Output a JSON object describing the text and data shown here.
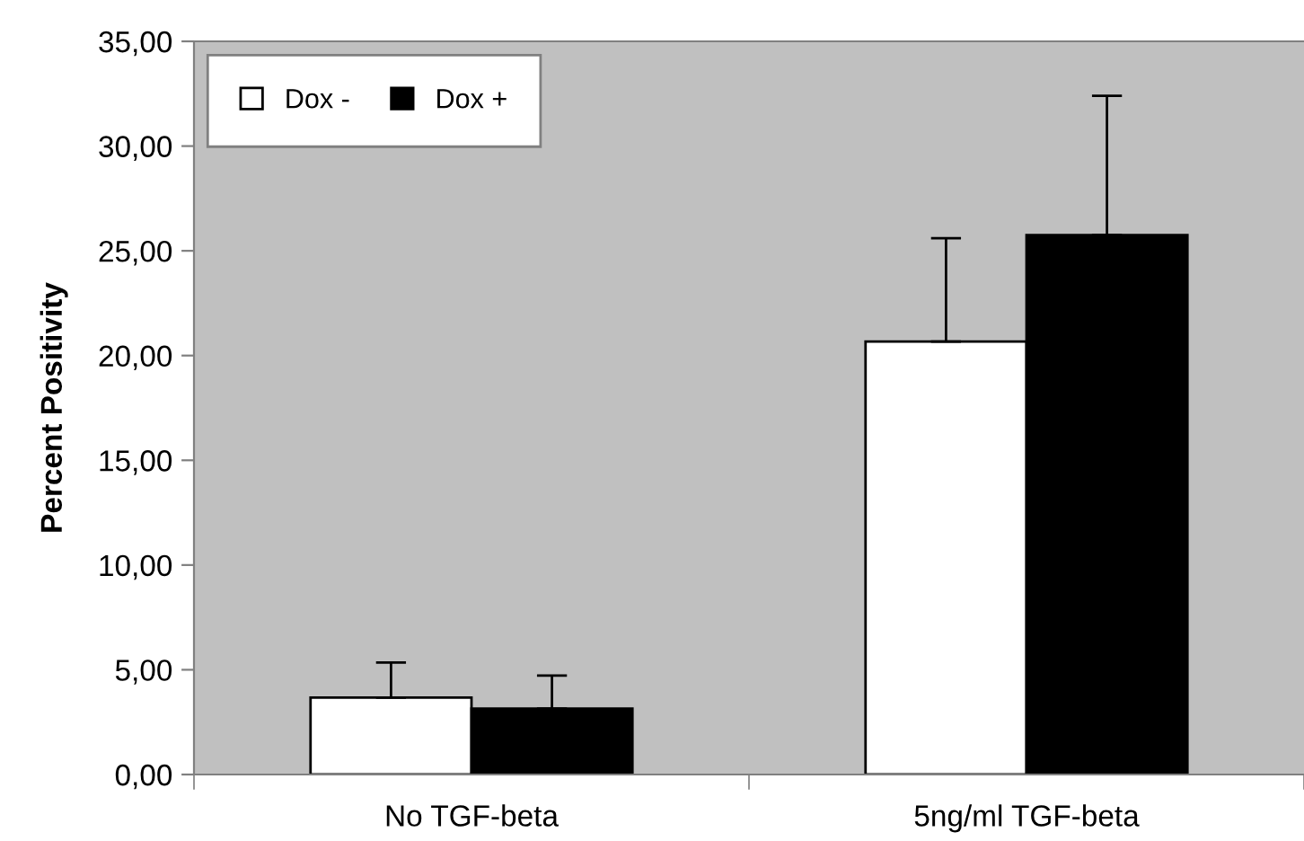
{
  "chart_data": {
    "type": "bar",
    "ylabel": "Percent Positivity",
    "categories": [
      "No TGF-beta",
      "5ng/ml TGF-beta"
    ],
    "series": [
      {
        "name": "Dox -",
        "color": "#ffffff",
        "values": [
          3.67,
          20.67
        ],
        "errors": [
          [
            3.67,
            5.35
          ],
          [
            20.67,
            25.6
          ]
        ]
      },
      {
        "name": "Dox +",
        "color": "#000000",
        "values": [
          3.15,
          25.75
        ],
        "errors": [
          [
            3.15,
            4.72
          ],
          [
            25.75,
            32.4
          ]
        ]
      }
    ],
    "ylim": [
      0,
      35
    ],
    "yticks": [
      {
        "value": 0,
        "label": "0,00"
      },
      {
        "value": 5,
        "label": "5,00"
      },
      {
        "value": 10,
        "label": "10,00"
      },
      {
        "value": 15,
        "label": "15,00"
      },
      {
        "value": 20,
        "label": "20,00"
      },
      {
        "value": 25,
        "label": "25,00"
      },
      {
        "value": 30,
        "label": "30,00"
      },
      {
        "value": 35,
        "label": "35,00"
      }
    ],
    "grid": false,
    "legend": "top left"
  }
}
